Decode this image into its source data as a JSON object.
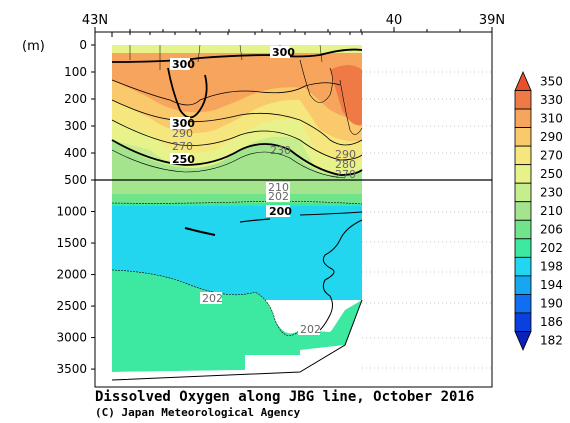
{
  "chart_data": {
    "type": "contour",
    "title": "Dissolved Oxygen along JBG line, October 2016",
    "credit": "(C) Japan Meteorological Agency",
    "units_label": "(m)",
    "x_axis": {
      "top_tick_labels": [
        "43N",
        "40",
        "39N"
      ]
    },
    "y_axis": {
      "upper_ticks": [
        "0",
        "100",
        "200",
        "300",
        "400",
        "500"
      ],
      "lower_ticks": [
        "1000",
        "1500",
        "2000",
        "2500",
        "3000",
        "3500"
      ],
      "upper_range": [
        0,
        500
      ],
      "lower_range": [
        500,
        3800
      ],
      "inverted": true
    },
    "colorbar": {
      "levels": [
        "350",
        "330",
        "310",
        "290",
        "270",
        "250",
        "230",
        "210",
        "206",
        "202",
        "198",
        "194",
        "190",
        "186",
        "182"
      ],
      "colors": [
        "#e8502a",
        "#f07a45",
        "#f7a45c",
        "#f9c96c",
        "#f5e77d",
        "#e7f28a",
        "#c6ee8e",
        "#a3e48c",
        "#6fe48a",
        "#3de8a0",
        "#22d6f0",
        "#17a7f0",
        "#0f6ff0",
        "#0a3fe0",
        "#0a22b8"
      ]
    },
    "contour_labels": [
      {
        "text": "300",
        "bold": true
      },
      {
        "text": "300",
        "bold": true
      },
      {
        "text": "300",
        "bold": true
      },
      {
        "text": "290",
        "bold": false
      },
      {
        "text": "270",
        "bold": false
      },
      {
        "text": "250",
        "bold": true
      },
      {
        "text": "230",
        "bold": false
      },
      {
        "text": "290",
        "bold": false
      },
      {
        "text": "280",
        "bold": false
      },
      {
        "text": "270",
        "bold": false
      },
      {
        "text": "210",
        "bold": false
      },
      {
        "text": "202",
        "bold": false
      },
      {
        "text": "200",
        "bold": true
      },
      {
        "text": "202",
        "bold": false
      },
      {
        "text": "202",
        "bold": false
      }
    ]
  }
}
